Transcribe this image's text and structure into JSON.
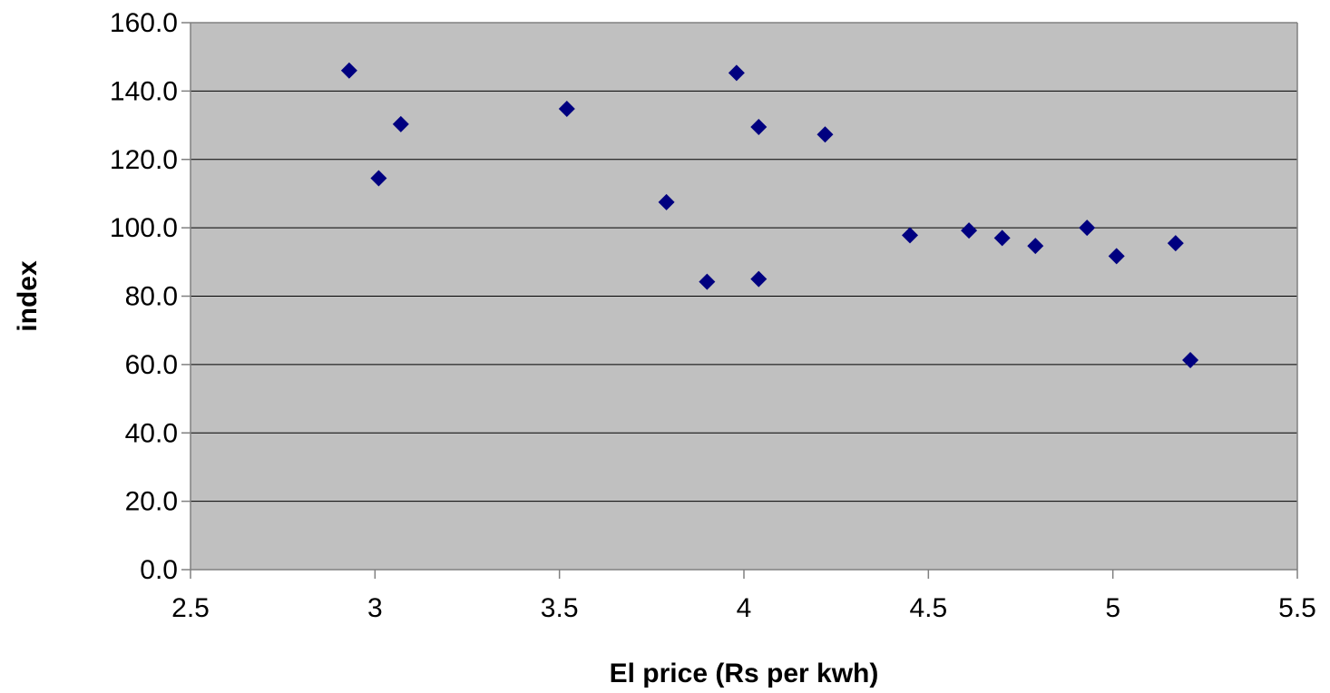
{
  "chart_data": {
    "type": "scatter",
    "title": "",
    "xlabel": "El price (Rs per kwh)",
    "ylabel": "index",
    "xlim": [
      2.5,
      5.5
    ],
    "ylim": [
      0,
      160
    ],
    "x_ticks": [
      2.5,
      3,
      3.5,
      4,
      4.5,
      5,
      5.5
    ],
    "x_tick_labels": [
      "2.5",
      "3",
      "3.5",
      "4",
      "4.5",
      "5",
      "5.5"
    ],
    "y_ticks": [
      0,
      20,
      40,
      60,
      80,
      100,
      120,
      140,
      160
    ],
    "y_tick_labels": [
      "0.0",
      "20.0",
      "40.0",
      "60.0",
      "80.0",
      "100.0",
      "120.0",
      "140.0",
      "160.0"
    ],
    "grid": "horizontal",
    "legend": "none",
    "plot_background": "#c0c0c0",
    "marker_color": "#000080",
    "marker": "diamond",
    "points": [
      {
        "x": 2.93,
        "y": 146.0
      },
      {
        "x": 3.01,
        "y": 114.5
      },
      {
        "x": 3.07,
        "y": 130.3
      },
      {
        "x": 3.52,
        "y": 134.8
      },
      {
        "x": 3.79,
        "y": 107.5
      },
      {
        "x": 3.9,
        "y": 84.2
      },
      {
        "x": 3.98,
        "y": 145.3
      },
      {
        "x": 4.04,
        "y": 129.5
      },
      {
        "x": 4.04,
        "y": 85.0
      },
      {
        "x": 4.22,
        "y": 127.3
      },
      {
        "x": 4.45,
        "y": 97.8
      },
      {
        "x": 4.61,
        "y": 99.2
      },
      {
        "x": 4.7,
        "y": 97.0
      },
      {
        "x": 4.79,
        "y": 94.7
      },
      {
        "x": 4.93,
        "y": 100.0
      },
      {
        "x": 5.01,
        "y": 91.7
      },
      {
        "x": 5.17,
        "y": 95.5
      },
      {
        "x": 5.21,
        "y": 61.3
      }
    ]
  }
}
